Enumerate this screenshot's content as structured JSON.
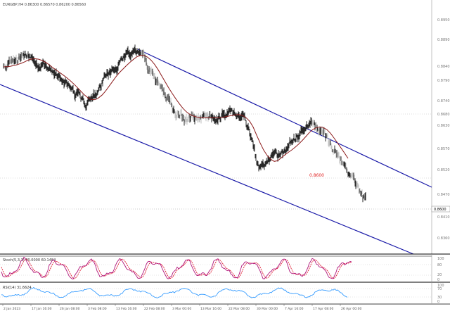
{
  "window": {
    "title": "EURGBP,H4 0.86300 0.86570 0.86200 0.86560"
  },
  "main_panel": {
    "price_labels": [
      "0.8950",
      "0.8890",
      "0.8840",
      "0.8790",
      "0.8740",
      "0.8680",
      "0.8630",
      "0.8570",
      "0.8520",
      "0.8470",
      "0.8410",
      "0.8360"
    ],
    "current_price": "0.8600",
    "level_label": "0.8600",
    "level_marker_text": "0.8600"
  },
  "stoch_panel": {
    "title": "Stoch(5,3,3) 80.0000 60.1484",
    "levels": [
      "100",
      "80",
      "20",
      "0"
    ]
  },
  "rsi_panel": {
    "title": "RSI(14) 31.6624",
    "levels": [
      "100",
      "70",
      "30",
      "0"
    ]
  },
  "time_axis": {
    "labels": [
      "2 Jan 2023",
      "17 Jan 16:00",
      "26 Jan 08:00",
      "3 Feb 08:00",
      "13 Feb 16:00",
      "22 Feb 08:00",
      "3 Mar 00:00",
      "13 Mar 16:00",
      "22 Mar 08:00",
      "30 Mar 00:00",
      "7 Apr 16:00",
      "17 Apr 08:00",
      "26 Apr 00:00"
    ]
  },
  "colors": {
    "channel": "#1a1aa8",
    "moving_average": "#8b1a1a",
    "stoch_main": "#b0147a",
    "stoch_signal": "#e0182f",
    "rsi": "#1e90ff",
    "candles_dark": "#111111",
    "candles_light": "#bbbbbb"
  }
}
